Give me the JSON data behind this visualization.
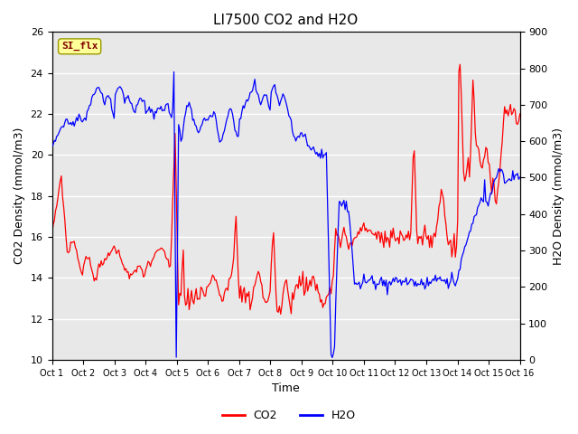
{
  "title": "LI7500 CO2 and H2O",
  "xlabel": "Time",
  "ylabel_left": "CO2 Density (mmol/m3)",
  "ylabel_right": "H2O Density (mmol/m3)",
  "x_tick_labels": [
    "Oct 1",
    "Oct 2",
    "Oct 3",
    "Oct 4",
    "Oct 5",
    "Oct 6",
    "Oct 7",
    "Oct 8",
    "Oct 9",
    "Oct 10",
    "Oct 11",
    "Oct 12",
    "Oct 13",
    "Oct 14",
    "Oct 15",
    "Oct 16"
  ],
  "ylim_left": [
    10,
    26
  ],
  "ylim_right": [
    0,
    900
  ],
  "yticks_left": [
    10,
    12,
    14,
    16,
    18,
    20,
    22,
    24,
    26
  ],
  "yticks_right": [
    0,
    100,
    200,
    300,
    400,
    500,
    600,
    700,
    800,
    900
  ],
  "co2_color": "#FF0000",
  "h2o_color": "#0000FF",
  "bg_color": "#E8E8E8",
  "annotation_text": "SI_flx",
  "annotation_bg": "#FFFF99",
  "annotation_fg": "#800000",
  "legend_co2": "CO2",
  "legend_h2o": "H2O",
  "title_fontsize": 11,
  "axis_label_fontsize": 9,
  "tick_fontsize": 8,
  "legend_fontsize": 9
}
